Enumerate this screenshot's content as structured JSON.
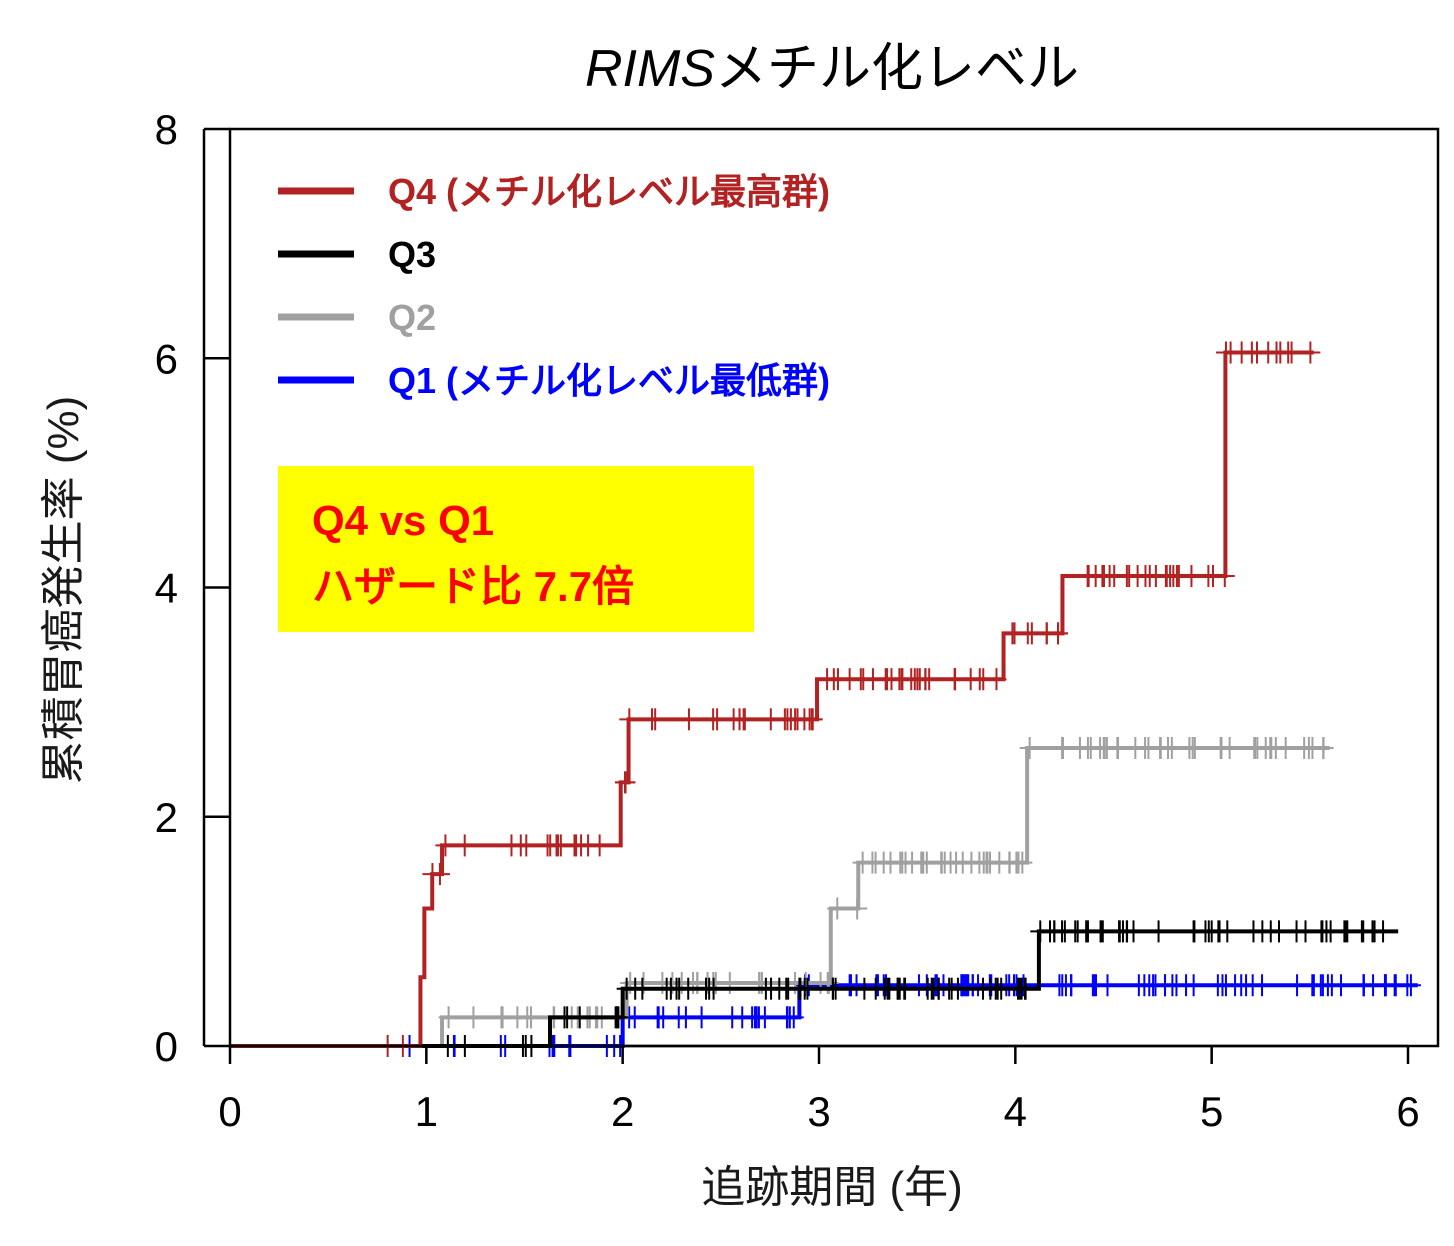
{
  "chart_data": {
    "type": "line",
    "title_italic": "RIMS",
    "title_rest": "メチル化レベル",
    "xlabel": "追跡期間 (年)",
    "ylabel": "累積胃癌発生率 (%)",
    "xlim": [
      0,
      6
    ],
    "ylim": [
      0,
      8
    ],
    "x_ticks": [
      "0",
      "1",
      "2",
      "3",
      "4",
      "5",
      "6"
    ],
    "y_ticks": [
      "0",
      "2",
      "4",
      "6",
      "8"
    ],
    "grid": false,
    "legend_position": "top-left",
    "annotation": {
      "line1": "Q4 vs Q1",
      "line2": "ハザード比 7.7倍",
      "background": "#ffff00",
      "color": "#ff0000"
    },
    "series": [
      {
        "name": "Q4 (メチル化レベル最高群)",
        "color": "#b22222",
        "steps": [
          [
            0,
            0
          ],
          [
            0.97,
            0
          ],
          [
            0.97,
            0.6
          ],
          [
            0.99,
            1.2
          ],
          [
            1.03,
            1.5
          ],
          [
            1.08,
            1.75
          ],
          [
            1.97,
            1.75
          ],
          [
            1.99,
            2.3
          ],
          [
            2.03,
            2.85
          ],
          [
            2.97,
            2.85
          ],
          [
            2.99,
            3.2
          ],
          [
            3.92,
            3.2
          ],
          [
            3.94,
            3.6
          ],
          [
            4.22,
            3.6
          ],
          [
            4.24,
            4.1
          ],
          [
            5.05,
            4.1
          ],
          [
            5.07,
            6.05
          ],
          [
            5.52,
            6.05
          ]
        ],
        "censor_range": [
          0.8,
          5.52
        ]
      },
      {
        "name": "Q3",
        "color": "#000000",
        "steps": [
          [
            0,
            0
          ],
          [
            1.63,
            0
          ],
          [
            1.63,
            0.25
          ],
          [
            1.97,
            0.25
          ],
          [
            2.0,
            0.5
          ],
          [
            4.1,
            0.5
          ],
          [
            4.12,
            1.0
          ],
          [
            5.95,
            1.0
          ]
        ],
        "censor_range": [
          1.1,
          5.95
        ]
      },
      {
        "name": "Q2",
        "color": "#a0a0a0",
        "steps": [
          [
            0,
            0
          ],
          [
            1.08,
            0
          ],
          [
            1.08,
            0.25
          ],
          [
            2.0,
            0.25
          ],
          [
            2.02,
            0.55
          ],
          [
            3.03,
            0.55
          ],
          [
            3.06,
            1.2
          ],
          [
            3.2,
            1.2
          ],
          [
            3.2,
            1.6
          ],
          [
            4.03,
            1.6
          ],
          [
            4.06,
            2.6
          ],
          [
            5.6,
            2.6
          ]
        ],
        "censor_range": [
          1.08,
          5.6
        ]
      },
      {
        "name": "Q1 (メチル化レベル最低群)",
        "color": "#0000ff",
        "steps": [
          [
            0,
            0
          ],
          [
            2.0,
            0
          ],
          [
            2.0,
            0.25
          ],
          [
            2.87,
            0.25
          ],
          [
            2.9,
            0.53
          ],
          [
            6.05,
            0.53
          ]
        ],
        "censor_range": [
          0.75,
          6.05
        ]
      }
    ]
  }
}
